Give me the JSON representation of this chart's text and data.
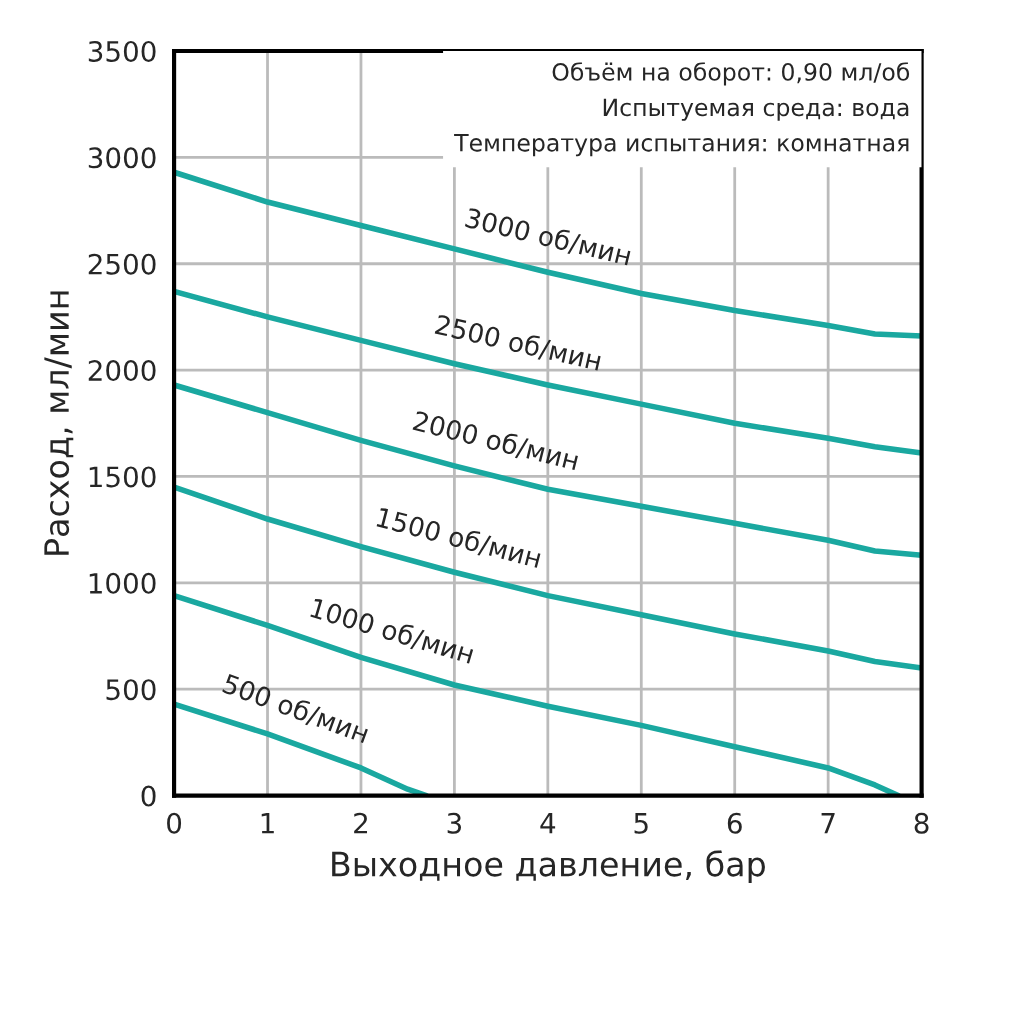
{
  "chart_data": {
    "type": "line",
    "xlabel": "Выходное давление, бар",
    "ylabel": "Расход, мл/мин",
    "xlim": [
      0,
      8
    ],
    "xticks": [
      0,
      1,
      2,
      3,
      4,
      5,
      6,
      7,
      8
    ],
    "ylim": [
      0,
      3500
    ],
    "yticks": [
      0,
      500,
      1000,
      1500,
      2000,
      2500,
      3000,
      3500
    ],
    "grid": true,
    "legend": false,
    "marker": "none",
    "line_style": "solid",
    "annotations": [
      "Объём на оборот: 0,90 мл/об",
      "Испытуемая среда: вода",
      "Температура испытания: комнатная"
    ],
    "series": [
      {
        "name": "3000 об/мин",
        "color": "#1aa8a0",
        "x": [
          0,
          1,
          2,
          3,
          4,
          5,
          6,
          7,
          7.5,
          8
        ],
        "values": [
          2930,
          2790,
          2680,
          2570,
          2460,
          2360,
          2280,
          2210,
          2170,
          2160
        ]
      },
      {
        "name": "2500 об/мин",
        "color": "#1aa8a0",
        "x": [
          0,
          1,
          2,
          3,
          4,
          5,
          6,
          7,
          7.5,
          8
        ],
        "values": [
          2370,
          2250,
          2140,
          2030,
          1930,
          1840,
          1750,
          1680,
          1640,
          1610
        ]
      },
      {
        "name": "2000 об/мин",
        "color": "#1aa8a0",
        "x": [
          0,
          1,
          2,
          3,
          4,
          5,
          6,
          7,
          7.5,
          8
        ],
        "values": [
          1930,
          1800,
          1670,
          1550,
          1440,
          1360,
          1280,
          1200,
          1150,
          1130
        ]
      },
      {
        "name": "1500 об/мин",
        "color": "#1aa8a0",
        "x": [
          0,
          1,
          2,
          3,
          4,
          5,
          6,
          7,
          7.5,
          8
        ],
        "values": [
          1450,
          1300,
          1170,
          1050,
          940,
          850,
          760,
          680,
          630,
          600
        ]
      },
      {
        "name": "1000 об/мин",
        "color": "#1aa8a0",
        "x": [
          0,
          1,
          2,
          3,
          4,
          5,
          6,
          7,
          7.5,
          7.75
        ],
        "values": [
          940,
          800,
          650,
          520,
          420,
          330,
          230,
          130,
          50,
          0
        ]
      },
      {
        "name": "500 об/мин",
        "color": "#1aa8a0",
        "x": [
          0,
          1,
          2,
          2.5,
          2.7
        ],
        "values": [
          430,
          290,
          130,
          30,
          0
        ]
      }
    ]
  }
}
